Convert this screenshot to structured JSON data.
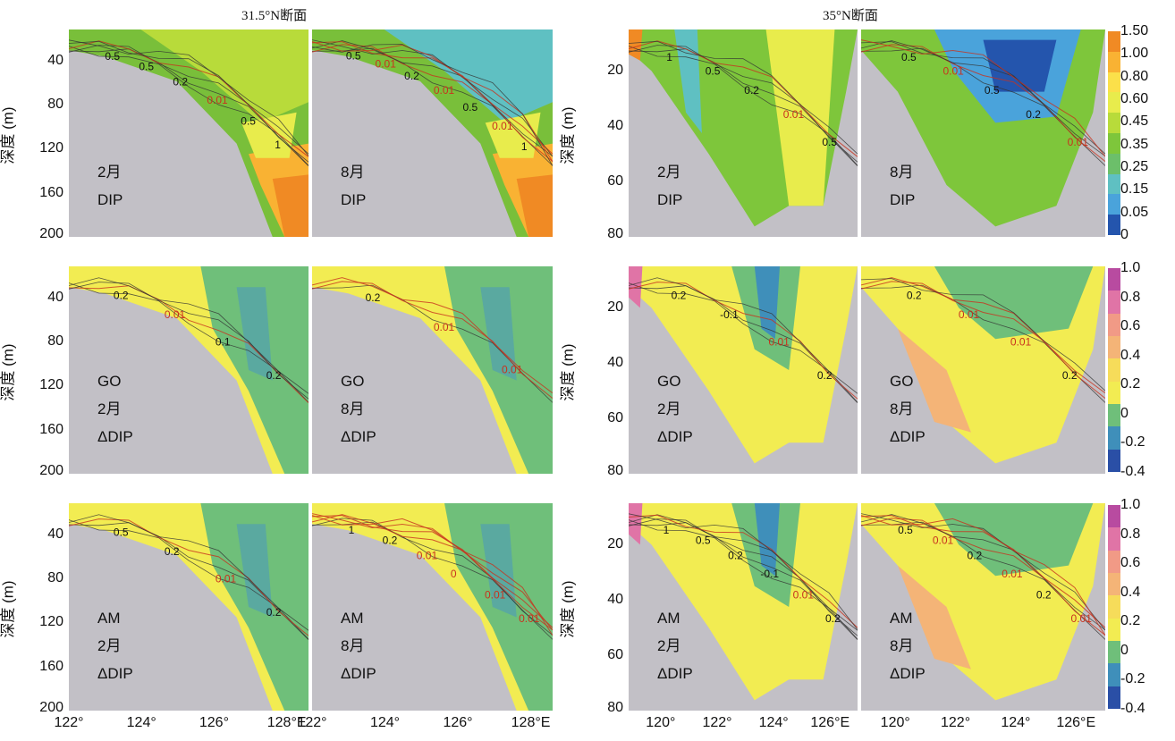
{
  "section_titles": {
    "left": "31.5°N断面",
    "right": "35°N断面"
  },
  "ylabel": "深度 (m)",
  "colors": {
    "land": "#c2c0c6",
    "contour_red": "#c8321e",
    "contour_black": "#333333"
  },
  "chart_data": [
    {
      "type": "heatmap",
      "section": "31.5°N",
      "variable": "DIP",
      "ylim": [
        0,
        200
      ],
      "yticks": [
        "40",
        "80",
        "120",
        "160",
        "200"
      ],
      "xticks": [],
      "panels": [
        {
          "lines": [
            "2月",
            "DIP"
          ],
          "contours": [
            "0.5",
            "0.5",
            "0.2",
            "0.01",
            "0.5",
            "1"
          ]
        },
        {
          "lines": [
            "8月",
            "DIP"
          ],
          "contours": [
            "0.5",
            "0.01",
            "0.2",
            "0.01",
            "0.5",
            "0.01",
            "1"
          ]
        }
      ]
    },
    {
      "type": "heatmap",
      "section": "35°N",
      "variable": "DIP",
      "ylim": [
        0,
        80
      ],
      "yticks": [
        "20",
        "40",
        "60",
        "80"
      ],
      "xticks": [],
      "panels": [
        {
          "lines": [
            "2月",
            "DIP"
          ],
          "contours": [
            "1",
            "0.5",
            "0.2",
            "0.01",
            "0.5"
          ]
        },
        {
          "lines": [
            "8月",
            "DIP"
          ],
          "contours": [
            "0.5",
            "0.01",
            "0.5",
            "0.2",
            "0.01"
          ]
        }
      ]
    },
    {
      "type": "heatmap",
      "section": "31.5°N",
      "variable": "GO ΔDIP",
      "ylim": [
        0,
        200
      ],
      "yticks": [
        "40",
        "80",
        "120",
        "160",
        "200"
      ],
      "xticks": [],
      "panels": [
        {
          "lines": [
            "GO",
            "2月",
            "ΔDIP"
          ],
          "contours": [
            "0.2",
            "0.01",
            "0.1",
            "0.2"
          ]
        },
        {
          "lines": [
            "GO",
            "8月",
            "ΔDIP"
          ],
          "contours": [
            "0.2",
            "0.01",
            "0.01"
          ]
        }
      ]
    },
    {
      "type": "heatmap",
      "section": "35°N",
      "variable": "GO ΔDIP",
      "ylim": [
        0,
        80
      ],
      "yticks": [
        "20",
        "40",
        "60",
        "80"
      ],
      "xticks": [],
      "panels": [
        {
          "lines": [
            "GO",
            "2月",
            "ΔDIP"
          ],
          "contours": [
            "0.2",
            "-0.1",
            "0.01",
            "0.2"
          ]
        },
        {
          "lines": [
            "GO",
            "8月",
            "ΔDIP"
          ],
          "contours": [
            "0.2",
            "0.01",
            "0.01",
            "0.2"
          ]
        }
      ]
    },
    {
      "type": "heatmap",
      "section": "31.5°N",
      "variable": "AM ΔDIP",
      "ylim": [
        0,
        200
      ],
      "yticks": [
        "40",
        "80",
        "120",
        "160",
        "200"
      ],
      "xticks": [
        "122°",
        "124°",
        "126°",
        "128°E"
      ],
      "panels": [
        {
          "lines": [
            "AM",
            "2月",
            "ΔDIP"
          ],
          "contours": [
            "0.5",
            "0.2",
            "0.01",
            "0.2"
          ]
        },
        {
          "lines": [
            "AM",
            "8月",
            "ΔDIP"
          ],
          "contours": [
            "1",
            "0.2",
            "0.01",
            "0",
            "0.01",
            "0.01"
          ]
        }
      ]
    },
    {
      "type": "heatmap",
      "section": "35°N",
      "variable": "AM ΔDIP",
      "ylim": [
        0,
        80
      ],
      "yticks": [
        "20",
        "40",
        "60",
        "80"
      ],
      "xticks": [
        "120°",
        "122°",
        "124°",
        "126°E"
      ],
      "panels": [
        {
          "lines": [
            "AM",
            "2月",
            "ΔDIP"
          ],
          "contours": [
            "1",
            "0.5",
            "0.2",
            "-0.1",
            "0.01",
            "0.2"
          ]
        },
        {
          "lines": [
            "AM",
            "8月",
            "ΔDIP"
          ],
          "contours": [
            "0.5",
            "0.01",
            "0.2",
            "0.01",
            "0.2",
            "0.01"
          ]
        }
      ]
    }
  ],
  "colorbars": [
    {
      "ticks": [
        "1.50",
        "1.00",
        "0.80",
        "0.60",
        "0.45",
        "0.35",
        "0.25",
        "0.15",
        "0.05",
        "0"
      ],
      "colors": [
        "#f08a24",
        "#f9b233",
        "#fbe04a",
        "#e8ec4c",
        "#b8db3a",
        "#7ec63b",
        "#6cbf6a",
        "#5fc0c2",
        "#4aa3db",
        "#2455ad"
      ]
    },
    {
      "ticks": [
        "1.0",
        "0.8",
        "0.6",
        "0.4",
        "0.2",
        "0",
        "-0.2",
        "-0.4"
      ],
      "colors": [
        "#b84ba0",
        "#e074a6",
        "#f19a86",
        "#f4b477",
        "#f6dc5a",
        "#f2ec52",
        "#6fbf7a",
        "#3f8fba",
        "#2a4fa6"
      ]
    },
    {
      "ticks": [
        "1.0",
        "0.8",
        "0.6",
        "0.4",
        "0.2",
        "0",
        "-0.2",
        "-0.4"
      ],
      "colors": [
        "#b84ba0",
        "#e074a6",
        "#f19a86",
        "#f4b477",
        "#f6dc5a",
        "#f2ec52",
        "#6fbf7a",
        "#3f8fba",
        "#2a4fa6"
      ]
    }
  ]
}
